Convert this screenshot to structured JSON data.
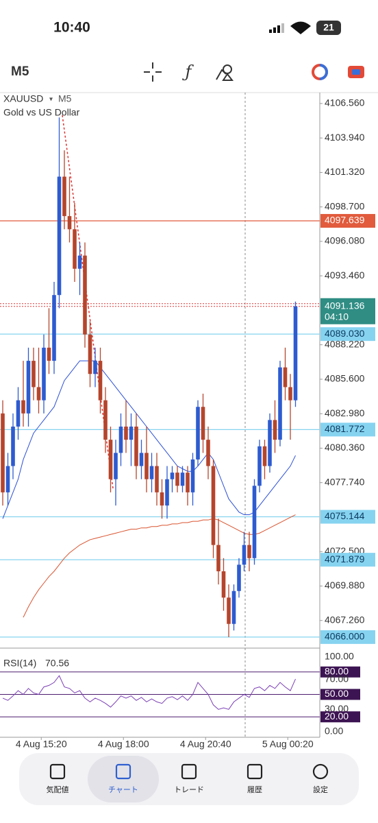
{
  "status": {
    "time": "10:40",
    "battery": "21"
  },
  "toolbar": {
    "timeframe": "M5"
  },
  "nav": {
    "tabs": [
      "気配値",
      "チャート",
      "トレード",
      "履歴",
      "設定"
    ],
    "active": 1
  },
  "chart_data": {
    "type": "candlestick",
    "symbol": "XAUUSD",
    "timeframe": "M5",
    "description": "Gold vs US Dollar",
    "up_color": "#2d5bd0",
    "down_color": "#b5452c",
    "open": [
      4083,
      4077,
      4079,
      4082,
      4084,
      4083,
      4087,
      4085,
      4084,
      4088,
      4087,
      4092,
      4101,
      4098,
      4097,
      4094,
      4095,
      4089,
      4086,
      4087,
      4084,
      4081,
      4078,
      4080,
      4082,
      4081,
      4082,
      4079,
      4080,
      4078,
      4079,
      4077,
      4076,
      4078,
      4078.5,
      4077.5,
      4078.5,
      4077,
      4079.5,
      4083.5,
      4081,
      4079,
      4073,
      4071,
      4069,
      4067,
      4069.5,
      4071.5,
      4073,
      4072,
      4077.5,
      4080.5,
      4079,
      4082.5,
      4081,
      4086.5,
      4085,
      4084
    ],
    "high": [
      4084,
      4080,
      4083,
      4085,
      4087,
      4088,
      4088,
      4088,
      4089,
      4091,
      4093,
      4105.5,
      4103,
      4101,
      4099,
      4096,
      4096,
      4090,
      4088,
      4088,
      4085,
      4082,
      4081,
      4083,
      4084,
      4083,
      4083,
      4081,
      4082,
      4080,
      4080,
      4078,
      4079,
      4079,
      4079,
      4079,
      4079,
      4080,
      4084,
      4084.5,
      4082,
      4079.5,
      4075,
      4072,
      4070,
      4070,
      4072,
      4074,
      4074,
      4078,
      4081,
      4081,
      4083,
      4084,
      4087,
      4088,
      4086,
      4091.5
    ],
    "low": [
      4076,
      4076,
      4078,
      4081,
      4082,
      4082,
      4084,
      4083,
      4083,
      4086,
      4086,
      4091,
      4097,
      4096,
      4093,
      4092,
      4088,
      4085,
      4085,
      4083,
      4080,
      4077,
      4076,
      4079,
      4080,
      4079,
      4078,
      4078,
      4077,
      4077,
      4076,
      4075,
      4075,
      4077,
      4077,
      4077,
      4076,
      4076,
      4079,
      4080,
      4078,
      4072,
      4070,
      4068,
      4066,
      4066.5,
      4069,
      4071,
      4071,
      4071.5,
      4077,
      4078,
      4078.5,
      4080,
      4080.5,
      4084,
      4081,
      4083.5
    ],
    "close": [
      4077,
      4079,
      4082,
      4084,
      4083,
      4087,
      4085,
      4084,
      4088,
      4087,
      4092,
      4101,
      4098,
      4097,
      4094,
      4095,
      4089,
      4086,
      4087,
      4084,
      4081,
      4078,
      4080,
      4082,
      4081,
      4082,
      4079,
      4080,
      4078,
      4079,
      4077,
      4076,
      4078,
      4078.5,
      4077.5,
      4078.5,
      4077,
      4079.5,
      4083.5,
      4081,
      4079,
      4073,
      4071,
      4069,
      4067,
      4069.5,
      4071.5,
      4073,
      4072,
      4077.5,
      4080.5,
      4079,
      4082.5,
      4081,
      4086.5,
      4085,
      4084,
      4091.136
    ],
    "lines": [
      {
        "color": "#2b4fd6",
        "values": [
          4075,
          4076,
          4077,
          4078,
          4079.5,
          4080.5,
          4081.5,
          4082,
          4082.5,
          4083,
          4083.5,
          4084.5,
          4085.5,
          4086,
          4086.5,
          4087,
          4087,
          4087,
          4087,
          4086.5,
          4086,
          4085.5,
          4085,
          4084.5,
          4084,
          4083.5,
          4083,
          4082.5,
          4082,
          4081.5,
          4081,
          4080.5,
          4080,
          4079.5,
          4079,
          4078.8,
          4078.6,
          4078.6,
          4079,
          4079.5,
          4080,
          4079.5,
          4078.5,
          4077.5,
          4076.5,
          4076,
          4075.5,
          4075.3,
          4075.3,
          4075.5,
          4076,
          4076.5,
          4077,
          4077.5,
          4078,
          4078.5,
          4079,
          4079.8
        ]
      },
      {
        "color": "#d9532f",
        "values": [
          null,
          null,
          null,
          null,
          4067.5,
          4068.3,
          4069,
          4069.6,
          4070.1,
          4070.6,
          4071,
          4071.5,
          4072,
          4072.4,
          4072.7,
          4073,
          4073.2,
          4073.4,
          4073.5,
          4073.6,
          4073.7,
          4073.8,
          4073.9,
          4074,
          4074.1,
          4074.2,
          4074.2,
          4074.3,
          4074.3,
          4074.4,
          4074.4,
          4074.5,
          4074.5,
          4074.6,
          4074.6,
          4074.7,
          4074.7,
          4074.8,
          4074.8,
          4074.9,
          4074.9,
          4075,
          4074.9,
          4074.7,
          4074.5,
          4074.3,
          4074.1,
          4073.9,
          4073.8,
          4073.8,
          4073.9,
          4074.1,
          4074.3,
          4074.5,
          4074.7,
          4074.9,
          4075.1,
          4075.3
        ]
      }
    ],
    "ylim": [
      4065.16,
      4107.39
    ],
    "yticks": [
      {
        "value": 4106.56,
        "label": "4106.560"
      },
      {
        "value": 4103.94,
        "label": "4103.940"
      },
      {
        "value": 4101.32,
        "label": "4101.320"
      },
      {
        "value": 4098.7,
        "label": "4098.700"
      },
      {
        "value": 4096.08,
        "label": "4096.080"
      },
      {
        "value": 4093.46,
        "label": "4093.460"
      },
      {
        "value": 4088.22,
        "label": "4088.220"
      },
      {
        "value": 4085.6,
        "label": "4085.600"
      },
      {
        "value": 4082.98,
        "label": "4082.980"
      },
      {
        "value": 4080.36,
        "label": "4080.360"
      },
      {
        "value": 4077.74,
        "label": "4077.740"
      },
      {
        "value": 4072.5,
        "label": "4072.500"
      },
      {
        "value": 4069.88,
        "label": "4069.880"
      },
      {
        "value": 4067.26,
        "label": "4067.260"
      }
    ],
    "levels": [
      {
        "value": 4097.639,
        "label": "4097.639",
        "color": "#e15b3c"
      },
      {
        "value": 4089.03,
        "label": "4089.030",
        "color": "#86d3f0"
      },
      {
        "value": 4081.772,
        "label": "4081.772",
        "color": "#86d3f0"
      },
      {
        "value": 4075.144,
        "label": "4075.144",
        "color": "#86d3f0"
      },
      {
        "value": 4071.879,
        "label": "4071.879",
        "color": "#86d3f0"
      },
      {
        "value": 4066,
        "label": "4066.000",
        "color": "#86d3f0"
      }
    ],
    "current": {
      "value": 4091.136,
      "label": "4091.136",
      "countdown": "04:10",
      "color": "#2f8d84"
    },
    "xticks": [
      {
        "value": 7.5,
        "label": "4 Aug 15:20"
      },
      {
        "value": 23.5,
        "label": "4 Aug 18:00"
      },
      {
        "value": 39.5,
        "label": "4 Aug 20:40"
      },
      {
        "value": 55.5,
        "label": "5 Aug 00:20"
      }
    ],
    "rsi": {
      "label": "RSI(14)",
      "color": "#7b3fb5",
      "values": [
        45,
        42,
        48,
        55,
        50,
        58,
        52,
        50,
        60,
        62,
        66,
        75,
        60,
        58,
        52,
        55,
        45,
        40,
        45,
        42,
        38,
        33,
        40,
        48,
        45,
        48,
        42,
        46,
        40,
        44,
        40,
        38,
        45,
        47,
        43,
        48,
        42,
        50,
        66,
        58,
        50,
        36,
        30,
        32,
        30,
        40,
        45,
        50,
        46,
        58,
        60,
        55,
        62,
        58,
        66,
        60,
        55,
        70.56
      ],
      "ylim": [
        -7.3,
        107.3
      ],
      "yticks": [
        {
          "value": 100,
          "label": "100.00"
        },
        {
          "value": 80,
          "label": "80.00",
          "level": true
        },
        {
          "value": 70,
          "label": "70.00"
        },
        {
          "value": 50,
          "label": "50.00",
          "level": true
        },
        {
          "value": 30,
          "label": "30.00"
        },
        {
          "value": 20,
          "label": "20.00",
          "level": true
        },
        {
          "value": 0,
          "label": "0.00"
        }
      ]
    }
  }
}
